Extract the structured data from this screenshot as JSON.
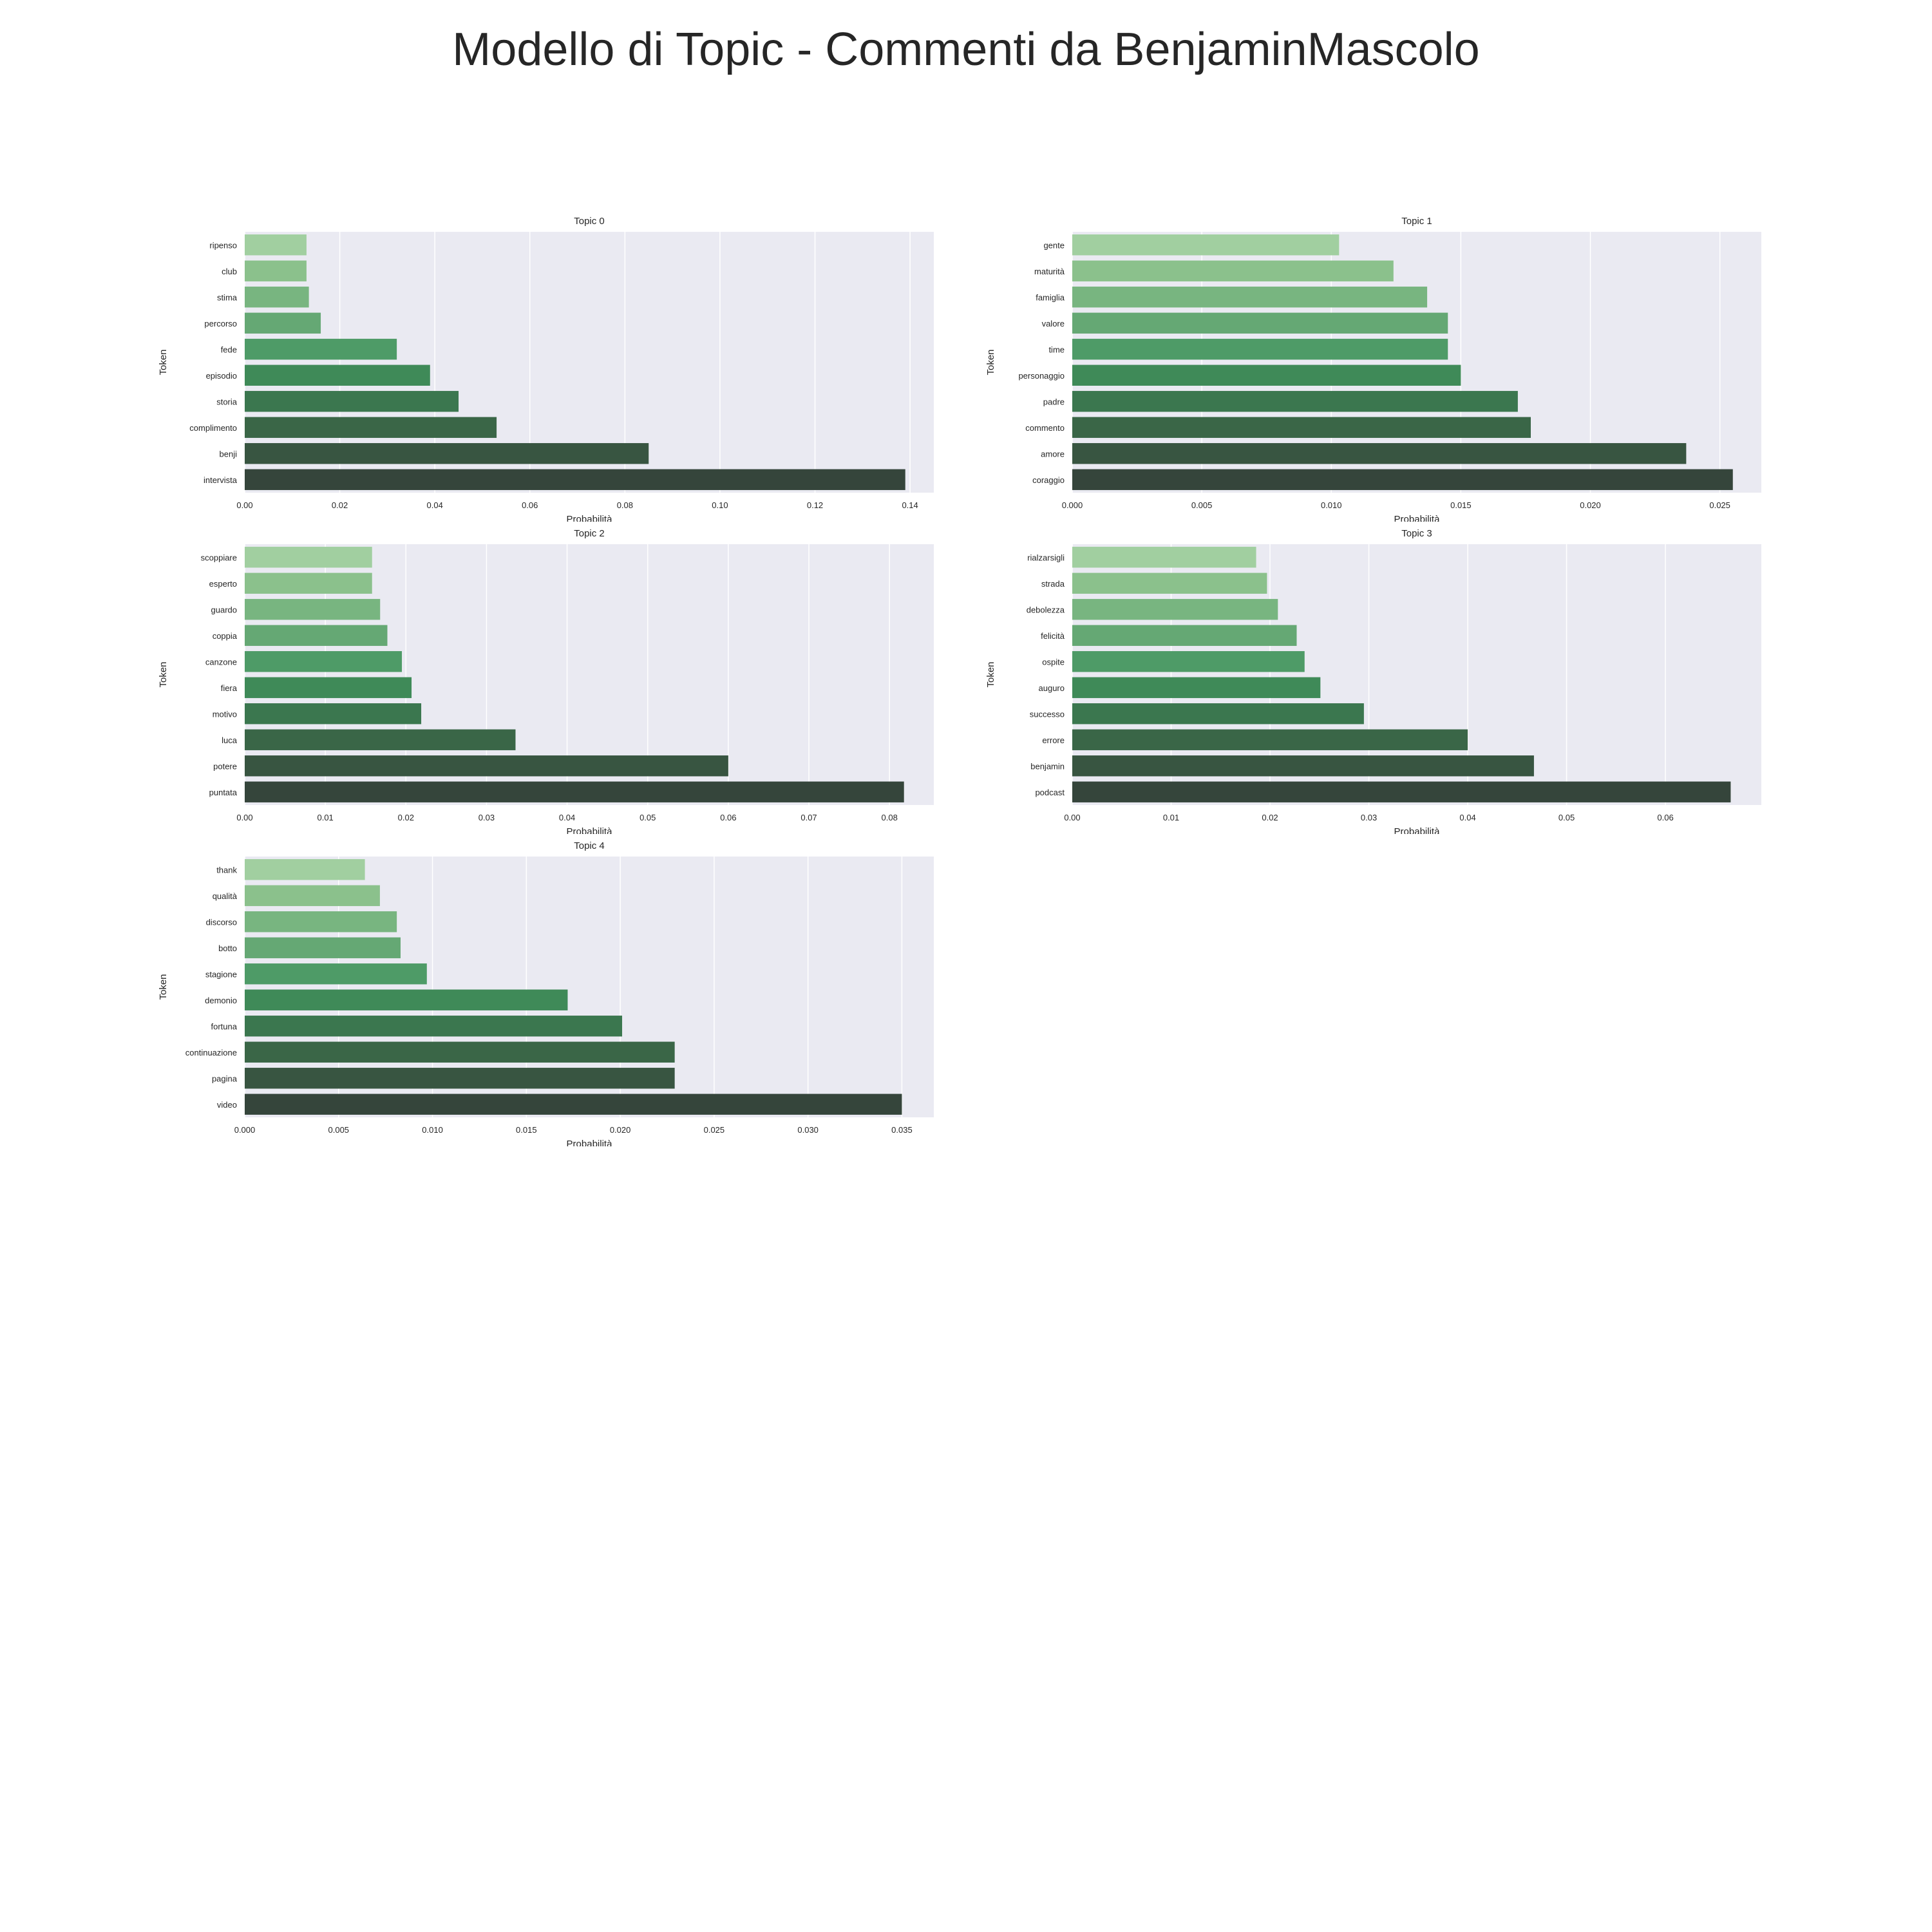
{
  "figure_title": "Modello di Topic - Commenti da BenjaminMascolo",
  "chart_data": [
    {
      "type": "bar",
      "orientation": "horizontal",
      "title": "Topic 0",
      "xlabel": "Probabilità",
      "ylabel": "Token",
      "categories": [
        "ripenso",
        "club",
        "stima",
        "percorso",
        "fede",
        "episodio",
        "storia",
        "complimento",
        "benji",
        "intervista"
      ],
      "values": [
        0.013,
        0.013,
        0.0135,
        0.016,
        0.032,
        0.039,
        0.045,
        0.053,
        0.085,
        0.139
      ],
      "xlim": [
        0,
        0.145
      ],
      "ticks": [
        0,
        0.02,
        0.04,
        0.06,
        0.08,
        0.1,
        0.12,
        0.14
      ],
      "tick_labels": [
        "0.00",
        "0.02",
        "0.04",
        "0.06",
        "0.08",
        "0.10",
        "0.12",
        "0.14"
      ],
      "grid": true
    },
    {
      "type": "bar",
      "orientation": "horizontal",
      "title": "Topic 1",
      "xlabel": "Probabilità",
      "ylabel": "Token",
      "categories": [
        "gente",
        "maturità",
        "famiglia",
        "valore",
        "time",
        "personaggio",
        "padre",
        "commento",
        "amore",
        "coraggio"
      ],
      "values": [
        0.0103,
        0.0124,
        0.0137,
        0.0145,
        0.0145,
        0.015,
        0.0172,
        0.0177,
        0.0237,
        0.0255
      ],
      "xlim": [
        0,
        0.0266
      ],
      "ticks": [
        0,
        0.005,
        0.01,
        0.015,
        0.02,
        0.025
      ],
      "tick_labels": [
        "0.000",
        "0.005",
        "0.010",
        "0.015",
        "0.020",
        "0.025"
      ],
      "grid": true
    },
    {
      "type": "bar",
      "orientation": "horizontal",
      "title": "Topic 2",
      "xlabel": "Probabilità",
      "ylabel": "Token",
      "categories": [
        "scoppiare",
        "esperto",
        "guardo",
        "coppia",
        "canzone",
        "fiera",
        "motivo",
        "luca",
        "potere",
        "puntata"
      ],
      "values": [
        0.0158,
        0.0158,
        0.0168,
        0.0177,
        0.0195,
        0.0207,
        0.0219,
        0.0336,
        0.06,
        0.0818
      ],
      "xlim": [
        0,
        0.0855
      ],
      "ticks": [
        0,
        0.01,
        0.02,
        0.03,
        0.04,
        0.05,
        0.06,
        0.07,
        0.08
      ],
      "tick_labels": [
        "0.00",
        "0.01",
        "0.02",
        "0.03",
        "0.04",
        "0.05",
        "0.06",
        "0.07",
        "0.08"
      ],
      "grid": true
    },
    {
      "type": "bar",
      "orientation": "horizontal",
      "title": "Topic 3",
      "xlabel": "Probabilità",
      "ylabel": "Token",
      "categories": [
        "rialzarsigli",
        "strada",
        "debolezza",
        "felicità",
        "ospite",
        "auguro",
        "successo",
        "errore",
        "benjamin",
        "podcast"
      ],
      "values": [
        0.0186,
        0.0197,
        0.0208,
        0.0227,
        0.0235,
        0.0251,
        0.0295,
        0.04,
        0.0467,
        0.0666
      ],
      "xlim": [
        0,
        0.0697
      ],
      "ticks": [
        0,
        0.01,
        0.02,
        0.03,
        0.04,
        0.05,
        0.06
      ],
      "tick_labels": [
        "0.00",
        "0.01",
        "0.02",
        "0.03",
        "0.04",
        "0.05",
        "0.06"
      ],
      "grid": true
    },
    {
      "type": "bar",
      "orientation": "horizontal",
      "title": "Topic 4",
      "xlabel": "Probabilità",
      "ylabel": "Token",
      "categories": [
        "thank",
        "qualità",
        "discorso",
        "botto",
        "stagione",
        "demonio",
        "fortuna",
        "continuazione",
        "pagina",
        "video"
      ],
      "values": [
        0.0064,
        0.0072,
        0.0081,
        0.0083,
        0.0097,
        0.0172,
        0.0201,
        0.0229,
        0.0229,
        0.035
      ],
      "xlim": [
        0,
        0.0367
      ],
      "ticks": [
        0,
        0.005,
        0.01,
        0.015,
        0.02,
        0.025,
        0.03,
        0.035
      ],
      "tick_labels": [
        "0.000",
        "0.005",
        "0.010",
        "0.015",
        "0.020",
        "0.025",
        "0.030",
        "0.035"
      ],
      "grid": true
    }
  ],
  "colors": {
    "plot_background": "#eaeaf2",
    "grid": "#ffffff",
    "bar_palette": [
      "#a1cfa0",
      "#8bc18c",
      "#78b580",
      "#65a874",
      "#4e9b67",
      "#3f8a58",
      "#3b774f",
      "#3a6647",
      "#385541",
      "#35453b"
    ]
  }
}
